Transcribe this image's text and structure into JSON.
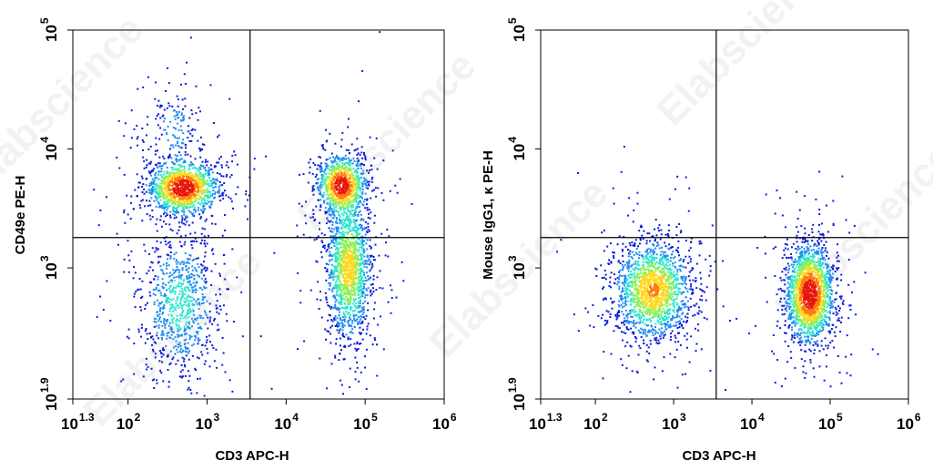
{
  "watermark_text": "Elabscience",
  "colormap": [
    "#0a1bd8",
    "#1f8cf0",
    "#2ee6d0",
    "#8ef05a",
    "#ffd81a",
    "#ff7a12",
    "#e8160c"
  ],
  "chart_data": [
    {
      "type": "scatter",
      "subtype": "flow-cytometry-density-plot",
      "xlabel": "CD3 APC-H",
      "ylabel": "CD49e PE-H",
      "x_scale": "log",
      "y_scale": "log",
      "xlim": [
        20,
        1000000
      ],
      "ylim": [
        79,
        100000
      ],
      "x_ticks": [
        {
          "base": "10",
          "exp": "1.3",
          "value": 20
        },
        {
          "base": "10",
          "exp": "2",
          "value": 100
        },
        {
          "base": "10",
          "exp": "3",
          "value": 1000
        },
        {
          "base": "10",
          "exp": "4",
          "value": 10000
        },
        {
          "base": "10",
          "exp": "5",
          "value": 100000
        },
        {
          "base": "10",
          "exp": "6",
          "value": 1000000
        }
      ],
      "y_ticks": [
        {
          "base": "10",
          "exp": "1.9",
          "value": 79
        },
        {
          "base": "10",
          "exp": "3",
          "value": 1000
        },
        {
          "base": "10",
          "exp": "4",
          "value": 10000
        },
        {
          "base": "10",
          "exp": "5",
          "value": 100000
        }
      ],
      "gate": {
        "x": 3500,
        "y": 1800
      },
      "grid": false,
      "populations": [
        {
          "x_center": 500,
          "y_center": 4700,
          "x_spread_log": 0.22,
          "y_spread_log": 0.11,
          "peak_density": 1.0,
          "count": 1300
        },
        {
          "x_center": 450,
          "y_center": 500,
          "x_spread_log": 0.24,
          "y_spread_log": 0.3,
          "peak_density": 0.3,
          "count": 850
        },
        {
          "x_center": 50000,
          "y_center": 5000,
          "x_spread_log": 0.15,
          "y_spread_log": 0.12,
          "peak_density": 0.95,
          "count": 900
        },
        {
          "x_center": 62000,
          "y_center": 1000,
          "x_spread_log": 0.14,
          "y_spread_log": 0.3,
          "peak_density": 0.6,
          "count": 1500
        },
        {
          "x_center": 400,
          "y_center": 15000,
          "x_spread_log": 0.18,
          "y_spread_log": 0.18,
          "peak_density": 0.15,
          "count": 160
        }
      ]
    },
    {
      "type": "scatter",
      "subtype": "flow-cytometry-density-plot",
      "xlabel": "CD3 APC-H",
      "ylabel": "Mouse IgG1, κ PE-H",
      "x_scale": "log",
      "y_scale": "log",
      "xlim": [
        20,
        1000000
      ],
      "ylim": [
        79,
        100000
      ],
      "x_ticks": [
        {
          "base": "10",
          "exp": "1.3",
          "value": 20
        },
        {
          "base": "10",
          "exp": "2",
          "value": 100
        },
        {
          "base": "10",
          "exp": "3",
          "value": 1000
        },
        {
          "base": "10",
          "exp": "4",
          "value": 10000
        },
        {
          "base": "10",
          "exp": "5",
          "value": 100000
        },
        {
          "base": "10",
          "exp": "6",
          "value": 1000000
        }
      ],
      "y_ticks": [
        {
          "base": "10",
          "exp": "1.9",
          "value": 79
        },
        {
          "base": "10",
          "exp": "3",
          "value": 1000
        },
        {
          "base": "10",
          "exp": "4",
          "value": 10000
        },
        {
          "base": "10",
          "exp": "5",
          "value": 100000
        }
      ],
      "gate": {
        "x": 3500,
        "y": 1800
      },
      "grid": false,
      "populations": [
        {
          "x_center": 550,
          "y_center": 650,
          "x_spread_log": 0.24,
          "y_spread_log": 0.2,
          "peak_density": 0.7,
          "count": 1700
        },
        {
          "x_center": 55000,
          "y_center": 600,
          "x_spread_log": 0.15,
          "y_spread_log": 0.2,
          "peak_density": 1.0,
          "count": 1900
        }
      ]
    }
  ]
}
